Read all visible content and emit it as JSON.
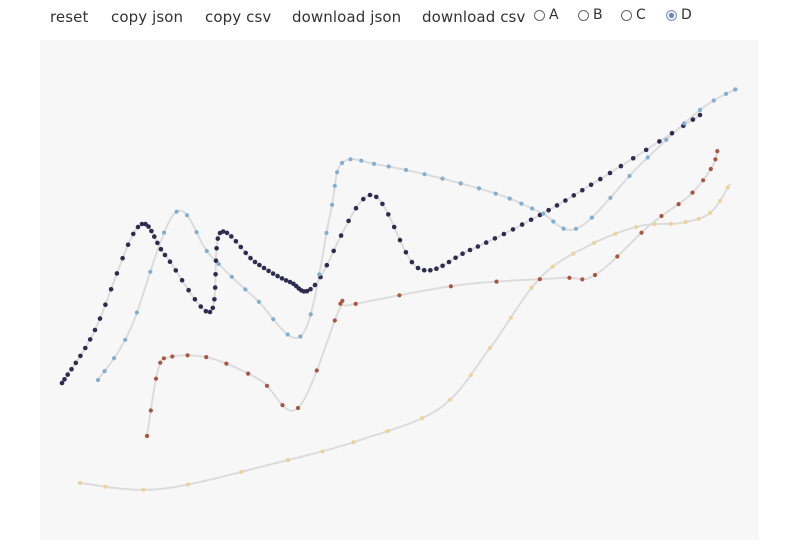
{
  "toolbar": {
    "reset": "reset",
    "copy_json": "copy json",
    "copy_csv": "copy csv",
    "download_json": "download json",
    "download_csv": "download csv"
  },
  "radios": [
    {
      "label": "A",
      "checked": false
    },
    {
      "label": "B",
      "checked": false
    },
    {
      "label": "C",
      "checked": false
    },
    {
      "label": "D",
      "checked": true
    }
  ],
  "colors": {
    "series_dark": "#2f2b4f",
    "series_blue": "#82aed1",
    "series_red": "#a9553f",
    "series_yellow": "#ecd39a",
    "curve": "#dcdcdc",
    "background": "#f7f7f7"
  },
  "chart_data": {
    "type": "scatter",
    "grid": false,
    "series": [
      {
        "color": "#2f2b4f",
        "x": [
          62,
          95,
          138,
          165,
          210,
          220,
          255,
          290,
          315,
          370,
          418,
          470,
          540,
          610,
          700
        ],
        "y": [
          383,
          330,
          227,
          255,
          312,
          233,
          262,
          282,
          285,
          195,
          268,
          250,
          215,
          173,
          115
        ]
      },
      {
        "color": "#82aed1",
        "x": [
          98,
          130,
          175,
          210,
          255,
          302,
          330,
          342,
          380,
          440,
          500,
          540,
          578,
          640,
          700,
          738
        ],
        "y": [
          380,
          330,
          213,
          255,
          298,
          335,
          215,
          163,
          165,
          178,
          195,
          212,
          228,
          165,
          110,
          88
        ]
      },
      {
        "color": "#a9553f",
        "x": [
          147,
          158,
          170,
          210,
          260,
          298,
          340,
          350,
          460,
          560,
          595,
          650,
          690,
          712,
          718
        ],
        "y": [
          436,
          370,
          357,
          358,
          380,
          408,
          308,
          305,
          285,
          278,
          275,
          225,
          195,
          167,
          148
        ]
      },
      {
        "color": "#ecd39a",
        "x": [
          80,
          160,
          280,
          360,
          440,
          490,
          540,
          590,
          640,
          680,
          710,
          730
        ],
        "y": [
          483,
          489,
          462,
          440,
          408,
          348,
          278,
          245,
          226,
          223,
          213,
          184
        ]
      }
    ]
  }
}
